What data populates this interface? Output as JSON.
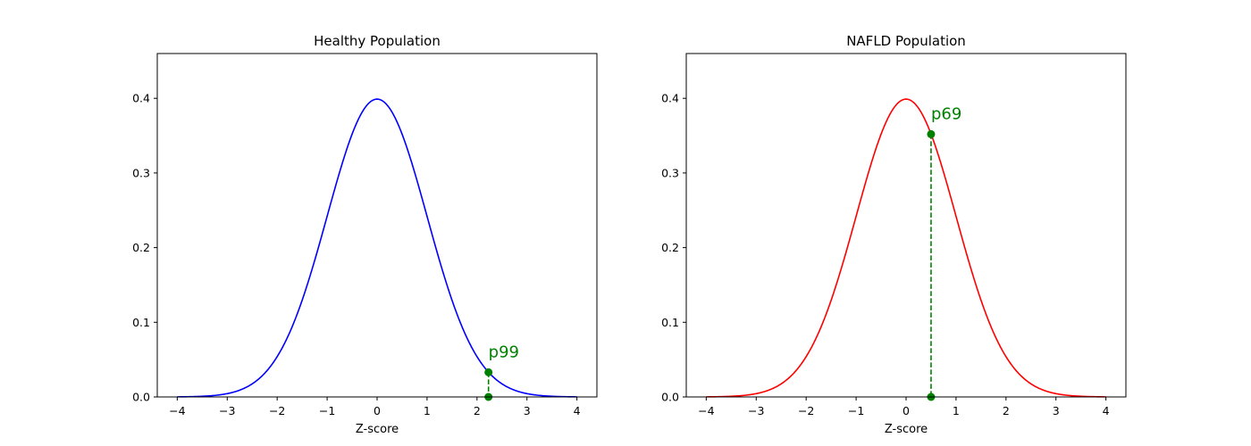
{
  "chart_data": [
    {
      "type": "line",
      "title": "Healthy Population",
      "xlabel": "Z-score",
      "ylabel": "",
      "xlim": [
        -4.4,
        4.4
      ],
      "ylim": [
        0,
        0.46
      ],
      "xticks": [
        -4,
        -3,
        -2,
        -1,
        0,
        1,
        2,
        3,
        4
      ],
      "xtick_labels": [
        "−4",
        "−3",
        "−2",
        "−1",
        "0",
        "1",
        "2",
        "3",
        "4"
      ],
      "yticks": [
        0.0,
        0.1,
        0.2,
        0.3,
        0.4
      ],
      "ytick_labels": [
        "0.0",
        "0.1",
        "0.2",
        "0.3",
        "0.4"
      ],
      "grid": false,
      "series": [
        {
          "curve": "standard normal pdf",
          "x_range": [
            -4,
            4
          ],
          "color": "#0000ff"
        }
      ],
      "marker": {
        "x": 2.23,
        "y": 0.033,
        "label": "p99",
        "color": "#008000"
      }
    },
    {
      "type": "line",
      "title": "NAFLD Population",
      "xlabel": "Z-score",
      "ylabel": "",
      "xlim": [
        -4.4,
        4.4
      ],
      "ylim": [
        0,
        0.46
      ],
      "xticks": [
        -4,
        -3,
        -2,
        -1,
        0,
        1,
        2,
        3,
        4
      ],
      "xtick_labels": [
        "−4",
        "−3",
        "−2",
        "−1",
        "0",
        "1",
        "2",
        "3",
        "4"
      ],
      "yticks": [
        0.0,
        0.1,
        0.2,
        0.3,
        0.4
      ],
      "ytick_labels": [
        "0.0",
        "0.1",
        "0.2",
        "0.3",
        "0.4"
      ],
      "grid": false,
      "series": [
        {
          "curve": "standard normal pdf",
          "x_range": [
            -4,
            4
          ],
          "color": "#ff0000"
        }
      ],
      "marker": {
        "x": 0.5,
        "y": 0.352,
        "label": "p69",
        "color": "#008000"
      }
    }
  ]
}
